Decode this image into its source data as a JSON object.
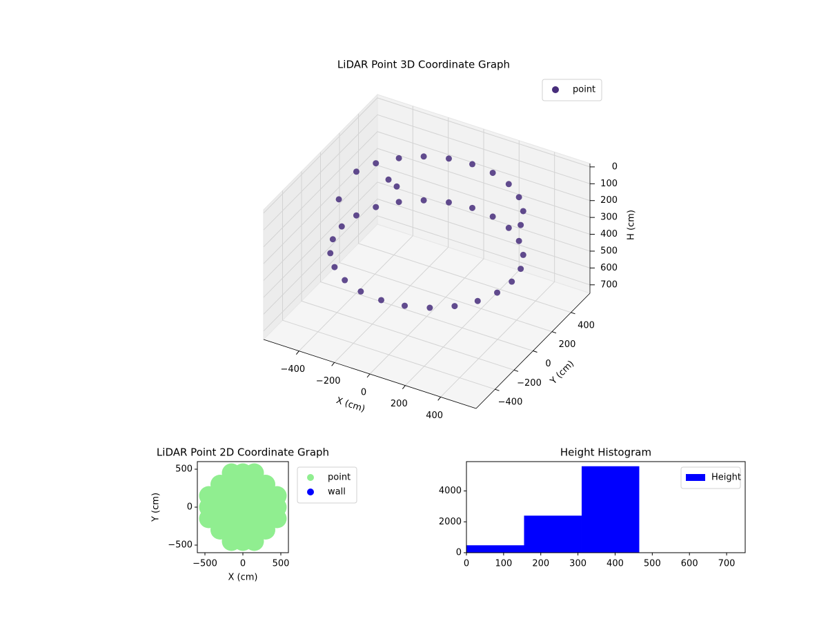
{
  "chart_data": [
    {
      "type": "scatter3d",
      "title": "LiDAR Point 3D Coordinate Graph",
      "xlabel": "X (cm)",
      "ylabel": "Y (cm)",
      "zlabel": "H (cm)",
      "xlim": [
        -600,
        600
      ],
      "ylim": [
        -600,
        600
      ],
      "zlim": [
        750,
        -20
      ],
      "xticks": [
        {
          "value": -400,
          "label": "−400"
        },
        {
          "value": -200,
          "label": "−200"
        },
        0,
        200,
        400
      ],
      "yticks": [
        {
          "value": -400,
          "label": "−400"
        },
        {
          "value": -200,
          "label": "−200"
        },
        0,
        200,
        400
      ],
      "zticks": [
        0,
        100,
        200,
        300,
        400,
        500,
        600,
        700
      ],
      "grid": true,
      "legend": "upper right",
      "series": [
        {
          "name": "point",
          "color": "#472d7b",
          "x": [
            480,
            464,
            416,
            339,
            240,
            124,
            0,
            -124,
            -240,
            -339,
            -416,
            -464,
            -480,
            -464,
            -416,
            -339,
            -240,
            -124,
            0,
            124,
            240,
            339,
            416,
            464,
            464,
            416,
            339,
            240,
            124,
            0,
            -124,
            -240,
            -339,
            -416,
            -464,
            -550,
            -350,
            -250
          ],
          "y": [
            0,
            124,
            240,
            339,
            416,
            464,
            480,
            464,
            416,
            339,
            240,
            124,
            0,
            -124,
            -240,
            -339,
            -416,
            -464,
            -480,
            -464,
            -416,
            -339,
            -240,
            -124,
            124,
            240,
            339,
            416,
            464,
            480,
            464,
            416,
            339,
            240,
            124,
            100,
            250,
            150
          ],
          "z": [
            380,
            380,
            380,
            380,
            380,
            380,
            380,
            380,
            380,
            380,
            380,
            380,
            380,
            380,
            380,
            380,
            380,
            380,
            380,
            380,
            380,
            380,
            380,
            380,
            120,
            120,
            120,
            120,
            120,
            120,
            120,
            120,
            120,
            120,
            120,
            300,
            200,
            150
          ]
        }
      ]
    },
    {
      "type": "scatter",
      "title": "LiDAR Point 2D Coordinate Graph",
      "xlabel": "X (cm)",
      "ylabel": "Y (cm)",
      "xlim": [
        -600,
        600
      ],
      "ylim": [
        -600,
        600
      ],
      "xticks": [
        {
          "value": -500,
          "label": "−500"
        },
        0,
        500
      ],
      "yticks": [
        {
          "value": -500,
          "label": "−500"
        },
        0,
        500
      ],
      "legend": "outside upper right",
      "series": [
        {
          "name": "point",
          "color": "#90ee90",
          "x": [
            -150,
            0,
            150,
            -300,
            -150,
            0,
            150,
            300,
            -450,
            -300,
            -150,
            0,
            150,
            300,
            450,
            -450,
            -300,
            -150,
            0,
            150,
            300,
            450,
            -450,
            -300,
            -150,
            0,
            150,
            300,
            450,
            -300,
            -150,
            0,
            150,
            300,
            -150,
            0,
            150
          ],
          "y": [
            -450,
            -450,
            -450,
            -300,
            -300,
            -300,
            -300,
            -300,
            -150,
            -150,
            -150,
            -150,
            -150,
            -150,
            -150,
            0,
            0,
            0,
            0,
            0,
            0,
            0,
            150,
            150,
            150,
            150,
            150,
            150,
            150,
            300,
            300,
            300,
            300,
            300,
            450,
            450,
            450
          ]
        },
        {
          "name": "wall",
          "color": "#0000ff",
          "x": [],
          "y": []
        }
      ]
    },
    {
      "type": "histogram",
      "title": "Height Histogram",
      "label": "Height",
      "color": "#0000ff",
      "bins": [
        0,
        155,
        310,
        465
      ],
      "counts": [
        480,
        2400,
        5600
      ],
      "xlim": [
        0,
        750
      ],
      "ylim": [
        0,
        5900
      ],
      "xticks": [
        0,
        100,
        200,
        300,
        400,
        500,
        600,
        700
      ],
      "yticks": [
        0,
        2000,
        4000
      ],
      "legend": "upper right"
    }
  ]
}
